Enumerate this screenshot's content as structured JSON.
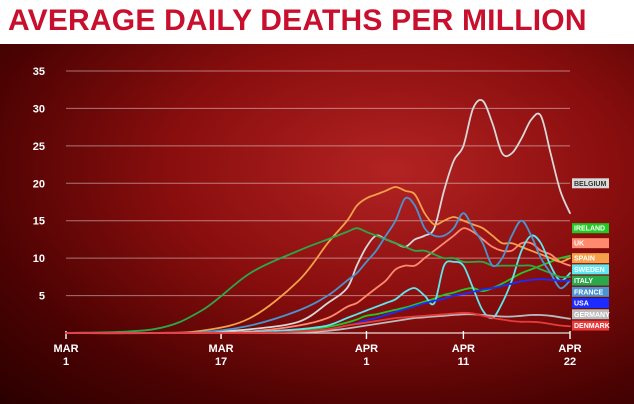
{
  "title": "AVERAGE DAILY DEATHS PER MILLION",
  "chart_data": {
    "type": "line",
    "title": "AVERAGE DAILY DEATHS PER MILLION",
    "ylim": [
      0,
      35
    ],
    "xlim": [
      1,
      53
    ],
    "grid": true,
    "legend_position": "right",
    "y_ticks": [
      5,
      10,
      15,
      20,
      25,
      30,
      35
    ],
    "x_ticks": [
      {
        "x": 1,
        "line1": "MAR",
        "line2": "1"
      },
      {
        "x": 17,
        "line1": "MAR",
        "line2": "17"
      },
      {
        "x": 32,
        "line1": "APR",
        "line2": "1"
      },
      {
        "x": 42,
        "line1": "APR",
        "line2": "11"
      },
      {
        "x": 53,
        "line1": "APR",
        "line2": "22"
      }
    ],
    "series": [
      {
        "name": "BELGIUM",
        "color": "#d8d8d8",
        "label_text": "#333333",
        "label_value": 20,
        "x": [
          1,
          10,
          15,
          20,
          25,
          28,
          30,
          31,
          32,
          33,
          34,
          35,
          36,
          37,
          38,
          39,
          40,
          41,
          42,
          43,
          44,
          45,
          46,
          47,
          48,
          49,
          50,
          51,
          52,
          53
        ],
        "y": [
          0,
          0,
          0.1,
          0.5,
          1.5,
          4,
          6,
          9,
          11.5,
          13,
          12.5,
          12,
          11.5,
          12.5,
          13,
          14,
          19,
          23,
          25,
          30,
          31,
          28,
          24,
          24,
          26,
          28.5,
          29,
          24,
          19,
          16
        ]
      },
      {
        "name": "IRELAND",
        "color": "#23c923",
        "label_text": "#ffffff",
        "label_value": 14,
        "x": [
          1,
          10,
          15,
          20,
          25,
          28,
          30,
          31,
          32,
          33,
          34,
          35,
          36,
          37,
          38,
          39,
          40,
          41,
          42,
          43,
          44,
          45,
          46,
          47,
          48,
          49,
          50,
          51,
          52,
          53
        ],
        "y": [
          0,
          0,
          0,
          0.1,
          0.4,
          0.8,
          1.4,
          1.8,
          2.3,
          2.5,
          2.8,
          3.1,
          3.4,
          3.8,
          4.2,
          4.6,
          5.1,
          5.4,
          5.8,
          6,
          5.6,
          6,
          6.6,
          7.3,
          8,
          8.5,
          9,
          9.5,
          10,
          10.3
        ]
      },
      {
        "name": "UK",
        "color": "#ff8a6e",
        "label_text": "#ffffff",
        "label_value": 12,
        "x": [
          1,
          10,
          15,
          20,
          25,
          28,
          30,
          31,
          32,
          33,
          34,
          35,
          36,
          37,
          38,
          39,
          40,
          41,
          42,
          43,
          44,
          45,
          46,
          47,
          48,
          49,
          50,
          51,
          52,
          53
        ],
        "y": [
          0,
          0,
          0,
          0.2,
          1,
          2,
          3.5,
          4,
          5,
          6,
          7,
          8.5,
          9,
          9,
          10,
          11,
          12,
          13,
          14,
          13.5,
          12.5,
          11.5,
          11,
          11,
          12,
          12,
          11,
          10.5,
          9.5,
          9
        ]
      },
      {
        "name": "SPAIN",
        "color": "#f5a04a",
        "label_text": "#ffffff",
        "label_value": 10,
        "x": [
          1,
          10,
          15,
          20,
          25,
          28,
          30,
          31,
          32,
          33,
          34,
          35,
          36,
          37,
          38,
          39,
          40,
          41,
          42,
          43,
          44,
          45,
          46,
          47,
          48,
          49,
          50,
          51,
          52,
          53
        ],
        "y": [
          0,
          0,
          0.3,
          2,
          7,
          12,
          15,
          17,
          18,
          18.5,
          19,
          19.5,
          19,
          18.5,
          16,
          14.5,
          15,
          15.5,
          15,
          14.5,
          14,
          13,
          12,
          12,
          11.5,
          11,
          10.5,
          10,
          9.5,
          10
        ]
      },
      {
        "name": "SWEDEN",
        "color": "#5ce8f0",
        "label_text": "#ffffff",
        "label_value": 8.5,
        "x": [
          1,
          10,
          15,
          20,
          25,
          28,
          30,
          31,
          32,
          33,
          34,
          35,
          36,
          37,
          38,
          39,
          40,
          41,
          42,
          43,
          44,
          45,
          46,
          47,
          48,
          49,
          50,
          51,
          52,
          53
        ],
        "y": [
          0,
          0,
          0,
          0.1,
          0.5,
          1,
          2,
          2.5,
          3,
          3.5,
          4,
          4.5,
          5.5,
          6,
          5,
          4,
          9,
          9.5,
          9,
          6,
          3,
          2,
          4,
          7,
          11,
          13,
          12,
          9,
          7,
          8
        ]
      },
      {
        "name": "ITALY",
        "color": "#2aa84a",
        "label_text": "#ffffff",
        "label_value": 7,
        "x": [
          1,
          10,
          15,
          20,
          25,
          28,
          30,
          31,
          32,
          33,
          34,
          35,
          36,
          37,
          38,
          39,
          40,
          41,
          42,
          43,
          44,
          45,
          46,
          47,
          48,
          49,
          50,
          51,
          52,
          53
        ],
        "y": [
          0,
          0.5,
          3,
          8,
          11,
          12.5,
          13.5,
          14,
          13.5,
          13,
          12.5,
          12,
          11.5,
          11,
          11,
          10.5,
          10,
          10,
          9.5,
          9.5,
          9.5,
          9,
          9,
          9,
          9,
          9,
          8.5,
          8,
          7.5,
          7.5
        ]
      },
      {
        "name": "FRANCE",
        "color": "#4a94d0",
        "label_text": "#ffffff",
        "label_value": 5.5,
        "x": [
          1,
          10,
          15,
          20,
          25,
          28,
          30,
          31,
          32,
          33,
          34,
          35,
          36,
          37,
          38,
          39,
          40,
          41,
          42,
          43,
          44,
          45,
          46,
          47,
          48,
          49,
          50,
          51,
          52,
          53
        ],
        "y": [
          0,
          0,
          0.1,
          1,
          3,
          5,
          7,
          8,
          9.5,
          11,
          13,
          15,
          18,
          17,
          14,
          13,
          13,
          14,
          16,
          14,
          12,
          9,
          10,
          13,
          15,
          13,
          10,
          8,
          6,
          7
        ]
      },
      {
        "name": "USA",
        "color": "#1c2bff",
        "label_text": "#ffffff",
        "label_value": 4,
        "x": [
          1,
          10,
          15,
          20,
          25,
          28,
          30,
          31,
          32,
          33,
          34,
          35,
          36,
          37,
          38,
          39,
          40,
          41,
          42,
          43,
          44,
          45,
          46,
          47,
          48,
          49,
          50,
          51,
          52,
          53
        ],
        "y": [
          0,
          0,
          0,
          0,
          0.2,
          0.5,
          1,
          1.3,
          1.7,
          2,
          2.4,
          2.8,
          3.2,
          3.6,
          4,
          4.3,
          4.6,
          5,
          5.2,
          5.5,
          5.8,
          6,
          6.3,
          6.6,
          6.9,
          7.1,
          7.2,
          7.1,
          7.0,
          7.0
        ]
      },
      {
        "name": "GERMANY",
        "color": "#bbbbbb",
        "label_text": "#ffffff",
        "label_value": 2.5,
        "x": [
          1,
          10,
          15,
          20,
          25,
          28,
          30,
          31,
          32,
          33,
          34,
          35,
          36,
          37,
          38,
          39,
          40,
          41,
          42,
          43,
          44,
          45,
          46,
          47,
          48,
          49,
          50,
          51,
          52,
          53
        ],
        "y": [
          0,
          0,
          0,
          0,
          0.1,
          0.3,
          0.6,
          0.8,
          1,
          1.2,
          1.4,
          1.6,
          1.8,
          2,
          2.1,
          2.2,
          2.3,
          2.4,
          2.5,
          2.5,
          2.4,
          2.3,
          2.2,
          2.2,
          2.3,
          2.4,
          2.4,
          2.3,
          2.1,
          1.9
        ]
      },
      {
        "name": "DENMARK",
        "color": "#e83a3a",
        "label_text": "#ffffff",
        "label_value": 1,
        "x": [
          1,
          10,
          15,
          20,
          25,
          28,
          30,
          31,
          32,
          33,
          34,
          35,
          36,
          37,
          38,
          39,
          40,
          41,
          42,
          43,
          44,
          45,
          46,
          47,
          48,
          49,
          50,
          51,
          52,
          53
        ],
        "y": [
          0,
          0,
          0,
          0,
          0.2,
          0.5,
          1,
          1.2,
          1.4,
          1.6,
          1.8,
          2,
          2.1,
          2.2,
          2.3,
          2.4,
          2.5,
          2.6,
          2.7,
          2.6,
          2.3,
          2,
          1.8,
          1.6,
          1.5,
          1.5,
          1.4,
          1.2,
          1,
          0.9
        ]
      }
    ]
  }
}
